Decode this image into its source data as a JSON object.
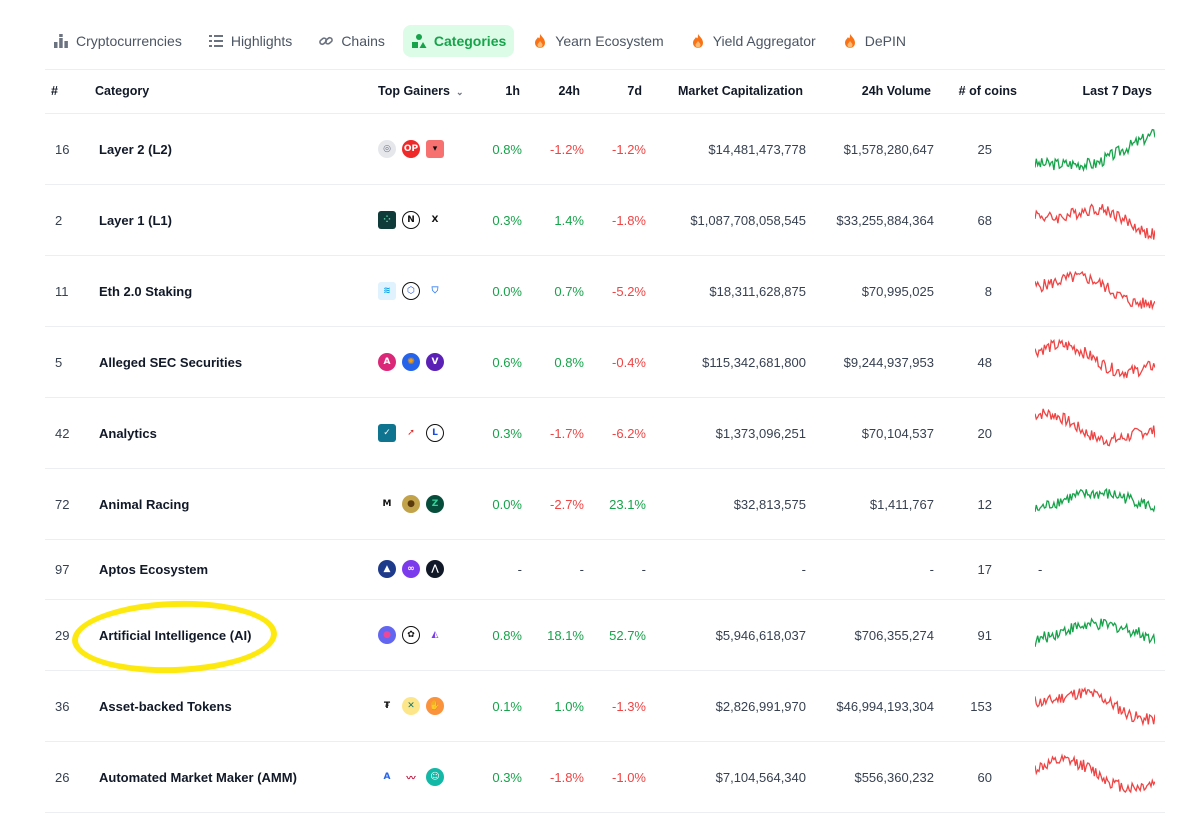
{
  "tabs": [
    {
      "label": "Cryptocurrencies",
      "icon": "bar-chart-icon",
      "active": false
    },
    {
      "label": "Highlights",
      "icon": "list-icon",
      "active": false
    },
    {
      "label": "Chains",
      "icon": "link-icon",
      "active": false
    },
    {
      "label": "Categories",
      "icon": "shapes-icon",
      "active": true
    },
    {
      "label": "Yearn Ecosystem",
      "icon": "flame-icon",
      "active": false
    },
    {
      "label": "Yield Aggregator",
      "icon": "flame-icon",
      "active": false
    },
    {
      "label": "DePIN",
      "icon": "flame-icon",
      "active": false
    }
  ],
  "table": {
    "headers": {
      "rank": "#",
      "category": "Category",
      "top_gainers": "Top Gainers",
      "h1": "1h",
      "h24": "24h",
      "d7": "7d",
      "market_cap": "Market Capitalization",
      "volume": "24h Volume",
      "coins": "# of coins",
      "last7": "Last 7 Days"
    },
    "rows": [
      {
        "rank": "16",
        "name": "Layer 2 (L2)",
        "h1": "0.8%",
        "h24": "-1.2%",
        "d7": "-1.2%",
        "mcap": "$14,481,473,778",
        "vol": "$1,578,280,647",
        "coins": "25",
        "trend": "up",
        "gainer_icons": [
          "arbitrum-like-icon",
          "optimism-icon",
          "imx-icon"
        ]
      },
      {
        "rank": "2",
        "name": "Layer 1 (L1)",
        "h1": "0.3%",
        "h24": "1.4%",
        "d7": "-1.8%",
        "mcap": "$1,087,708,058,545",
        "vol": "$33,255,884,364",
        "coins": "68",
        "trend": "down",
        "gainer_icons": [
          "grid-token-icon",
          "n-token-icon",
          "x-token-icon"
        ]
      },
      {
        "rank": "11",
        "name": "Eth 2.0 Staking",
        "h1": "0.0%",
        "h24": "0.7%",
        "d7": "-5.2%",
        "mcap": "$18,311,628,875",
        "vol": "$70,995,025",
        "coins": "8",
        "trend": "down",
        "gainer_icons": [
          "stakewise-icon",
          "ankr-icon",
          "shield-token-icon"
        ]
      },
      {
        "rank": "5",
        "name": "Alleged SEC Securities",
        "h1": "0.6%",
        "h24": "0.8%",
        "d7": "-0.4%",
        "mcap": "$115,342,681,800",
        "vol": "$9,244,937,953",
        "coins": "48",
        "trend": "down",
        "gainer_icons": [
          "cardano-icon",
          "globe-token-icon",
          "v-token-icon"
        ]
      },
      {
        "rank": "42",
        "name": "Analytics",
        "h1": "0.3%",
        "h24": "-1.7%",
        "d7": "-6.2%",
        "mcap": "$1,373,096,251",
        "vol": "$70,104,537",
        "coins": "20",
        "trend": "down",
        "gainer_icons": [
          "check-token-icon",
          "arrow-token-icon",
          "l-token-icon"
        ]
      },
      {
        "rank": "72",
        "name": "Animal Racing",
        "h1": "0.0%",
        "h24": "-2.7%",
        "d7": "23.1%",
        "mcap": "$32,813,575",
        "vol": "$1,411,767",
        "coins": "12",
        "trend": "up",
        "gainer_icons": [
          "m-token-icon",
          "coin-token-icon",
          "z-token-icon"
        ]
      },
      {
        "rank": "97",
        "name": "Aptos Ecosystem",
        "h1": "-",
        "h24": "-",
        "d7": "-",
        "mcap": "-",
        "vol": "-",
        "coins": "17",
        "trend": "none",
        "gainer_icons": [
          "aptos-token-icon",
          "infinity-token-icon",
          "mountain-token-icon"
        ]
      },
      {
        "rank": "29",
        "name": "Artificial Intelligence (AI)",
        "h1": "0.8%",
        "h24": "18.1%",
        "d7": "52.7%",
        "mcap": "$5,946,618,037",
        "vol": "$706,355,274",
        "coins": "91",
        "trend": "up",
        "gainer_icons": [
          "orb-token-icon",
          "openai-like-icon",
          "triangle-token-icon"
        ]
      },
      {
        "rank": "36",
        "name": "Asset-backed Tokens",
        "h1": "0.1%",
        "h24": "1.0%",
        "d7": "-1.3%",
        "mcap": "$2,826,991,970",
        "vol": "$46,994,193,304",
        "coins": "153",
        "trend": "down",
        "gainer_icons": [
          "tether-icon",
          "x-circle-token-icon",
          "hand-token-icon"
        ]
      },
      {
        "rank": "26",
        "name": "Automated Market Maker (AMM)",
        "h1": "0.3%",
        "h24": "-1.8%",
        "d7": "-1.0%",
        "mcap": "$7,104,564,340",
        "vol": "$556,360,232",
        "coins": "60",
        "trend": "down",
        "gainer_icons": [
          "a-token-icon",
          "wave-token-icon",
          "ghost-token-icon"
        ]
      }
    ]
  },
  "colors": {
    "positive": "#16a34a",
    "negative": "#ef4444",
    "accent_bg": "#dcfce7",
    "highlight": "#fde910"
  }
}
